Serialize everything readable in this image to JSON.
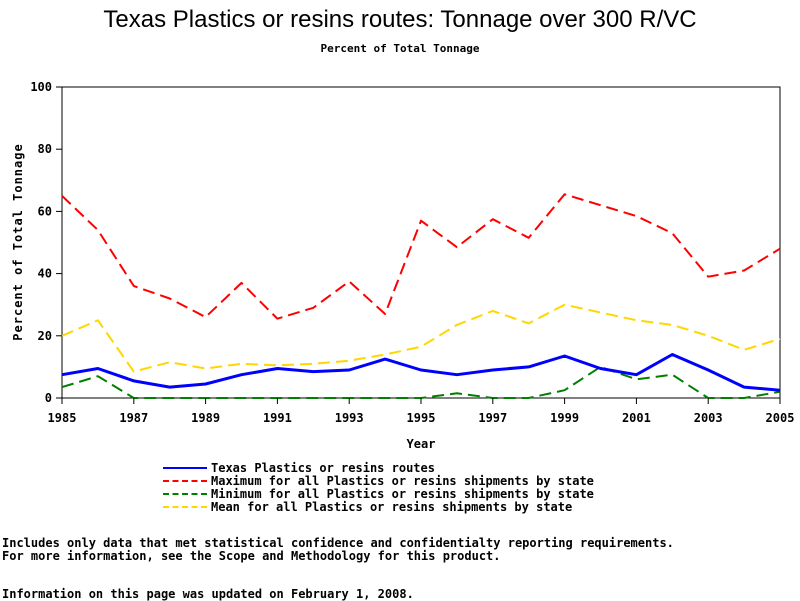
{
  "chart_data": {
    "type": "line",
    "title": "Texas Plastics or resins routes: Tonnage over 300 R/VC",
    "subtitle": "Percent of Total Tonnage",
    "xlabel": "Year",
    "ylabel": "Percent of Total Tonnage",
    "xlim": [
      1985,
      2005
    ],
    "ylim": [
      0,
      100
    ],
    "x_ticks": [
      "1985",
      "1987",
      "1989",
      "1991",
      "1993",
      "1995",
      "1997",
      "1999",
      "2001",
      "2003",
      "2005"
    ],
    "y_ticks": [
      "0",
      "20",
      "40",
      "60",
      "80",
      "100"
    ],
    "grid": false,
    "legend_position": "bottom",
    "x": [
      1985,
      1986,
      1987,
      1988,
      1989,
      1990,
      1991,
      1992,
      1993,
      1994,
      1995,
      1996,
      1997,
      1998,
      1999,
      2000,
      2001,
      2002,
      2003,
      2004,
      2005
    ],
    "series": [
      {
        "name": "Texas Plastics or resins routes",
        "color": "#0000ff",
        "dash": "solid",
        "values": [
          7.5,
          9.5,
          5.5,
          3.5,
          4.5,
          7.5,
          9.5,
          8.5,
          9,
          12.5,
          9,
          7.5,
          9,
          10,
          13.5,
          9.5,
          7.5,
          14,
          9,
          3.5,
          2.5
        ]
      },
      {
        "name": "Maximum for all Plastics or resins shipments by state",
        "color": "#ff0000",
        "dash": "dashed",
        "values": [
          65,
          54,
          36,
          32,
          26,
          37,
          25.5,
          29,
          37.5,
          27,
          57,
          48.5,
          57.5,
          51.5,
          65.5,
          62,
          58.5,
          53,
          39,
          41,
          48
        ]
      },
      {
        "name": "Minimum for all Plastics or resins shipments by state",
        "color": "#008000",
        "dash": "dashed",
        "values": [
          3.5,
          7,
          0,
          0,
          0,
          0,
          0,
          0,
          0,
          0,
          0,
          1.5,
          0,
          0,
          2.5,
          10,
          6,
          7.5,
          0,
          0,
          2
        ]
      },
      {
        "name": "Mean for all Plastics or resins shipments by state",
        "color": "#ffd700",
        "dash": "dashed",
        "values": [
          20,
          25,
          8.5,
          11.5,
          9.5,
          11,
          10.5,
          11,
          12,
          14,
          16.5,
          23.5,
          28,
          24,
          30,
          27.5,
          25,
          23.5,
          20,
          15.5,
          19
        ]
      }
    ]
  },
  "notes": {
    "line1": "Includes only data that met statistical confidence and confidentialty reporting requirements.",
    "line2": "For more information, see the Scope and Methodology for this product.",
    "updated": "Information on this page was updated on February 1, 2008."
  }
}
